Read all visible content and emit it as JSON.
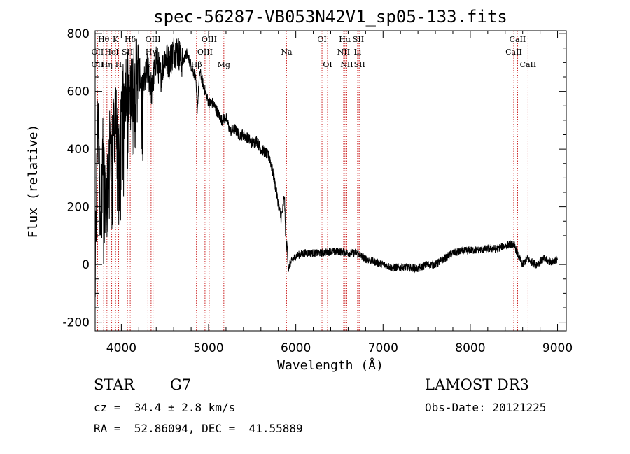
{
  "chart_data": {
    "type": "line",
    "title": "spec-56287-VB053N42V1_sp05-133.fits",
    "xlabel": "Wavelength (Å)",
    "ylabel": "Flux (relative)",
    "xlim": [
      3700,
      9100
    ],
    "ylim": [
      -230,
      810
    ],
    "xticks": [
      4000,
      5000,
      6000,
      7000,
      8000,
      9000
    ],
    "yticks": [
      -200,
      0,
      200,
      400,
      600,
      800
    ],
    "colors": {
      "spectrum": "#000000",
      "line_marker": "#cc2222",
      "axis": "#000000"
    },
    "spectral_lines": [
      {
        "label": "Hθ",
        "wavelength": 3798,
        "row": 1
      },
      {
        "label": "K",
        "wavelength": 3934,
        "row": 1
      },
      {
        "label": "Hδ",
        "wavelength": 4102,
        "row": 1
      },
      {
        "label": "OII",
        "wavelength": 3727,
        "row": 2
      },
      {
        "label": "HeI",
        "wavelength": 3889,
        "row": 2
      },
      {
        "label": "SII",
        "wavelength": 4070,
        "row": 2
      },
      {
        "label": "OII",
        "wavelength": 3727,
        "row": 3
      },
      {
        "label": "Hη",
        "wavelength": 3835,
        "row": 3
      },
      {
        "label": "H",
        "wavelength": 3969,
        "row": 3
      },
      {
        "label": "OIII",
        "wavelength": 4363,
        "row": 1
      },
      {
        "label": "Hγ",
        "wavelength": 4341,
        "row": 2
      },
      {
        "label": "G",
        "wavelength": 4305,
        "row": 3
      },
      {
        "label": "Hβ",
        "wavelength": 4861,
        "row": 3
      },
      {
        "label": "OIII",
        "wavelength": 4959,
        "row": 2
      },
      {
        "label": "OIII",
        "wavelength": 5007,
        "row": 1
      },
      {
        "label": "Mg",
        "wavelength": 5175,
        "row": 3
      },
      {
        "label": "Na",
        "wavelength": 5894,
        "row": 2
      },
      {
        "label": "OI",
        "wavelength": 6300,
        "row": 1
      },
      {
        "label": "OI",
        "wavelength": 6364,
        "row": 3
      },
      {
        "label": "NII",
        "wavelength": 6548,
        "row": 2
      },
      {
        "label": "NII",
        "wavelength": 6584,
        "row": 3
      },
      {
        "label": "Hα",
        "wavelength": 6563,
        "row": 1
      },
      {
        "label": "SII",
        "wavelength": 6717,
        "row": 1
      },
      {
        "label": "SII",
        "wavelength": 6731,
        "row": 3
      },
      {
        "label": "Li",
        "wavelength": 6708,
        "row": 2
      },
      {
        "label": "CaII",
        "wavelength": 8498,
        "row": 2
      },
      {
        "label": "CaII",
        "wavelength": 8542,
        "row": 1
      },
      {
        "label": "CaII",
        "wavelength": 8662,
        "row": 3
      }
    ],
    "spectrum_anchors": {
      "x": [
        3700,
        3710,
        3730,
        3760,
        3790,
        3820,
        3860,
        3900,
        3940,
        3980,
        4020,
        4060,
        4100,
        4150,
        4200,
        4250,
        4300,
        4350,
        4400,
        4450,
        4500,
        4550,
        4600,
        4650,
        4700,
        4750,
        4800,
        4850,
        4870,
        4900,
        4950,
        5000,
        5050,
        5100,
        5150,
        5200,
        5250,
        5300,
        5350,
        5400,
        5450,
        5500,
        5550,
        5600,
        5650,
        5700,
        5750,
        5800,
        5830,
        5850,
        5870,
        5880,
        5890,
        5900,
        5915,
        5930,
        5950,
        6000,
        6100,
        6200,
        6300,
        6400,
        6500,
        6600,
        6700,
        6800,
        6900,
        7000,
        7100,
        7200,
        7300,
        7400,
        7500,
        7600,
        7700,
        7800,
        7900,
        8000,
        8100,
        8200,
        8300,
        8400,
        8450,
        8500,
        8550,
        8600,
        8650,
        8700,
        8750,
        8800,
        8850,
        8900,
        8950,
        9000
      ],
      "y": [
        30,
        120,
        560,
        230,
        390,
        200,
        410,
        420,
        530,
        380,
        570,
        640,
        600,
        680,
        670,
        610,
        680,
        600,
        720,
        650,
        720,
        700,
        740,
        740,
        700,
        730,
        690,
        650,
        540,
        670,
        610,
        560,
        560,
        530,
        500,
        510,
        460,
        470,
        450,
        450,
        440,
        420,
        430,
        400,
        390,
        370,
        300,
        210,
        160,
        190,
        240,
        130,
        60,
        70,
        -20,
        0,
        10,
        30,
        40,
        40,
        40,
        45,
        45,
        40,
        40,
        20,
        10,
        0,
        -10,
        -10,
        -10,
        -15,
        0,
        0,
        20,
        40,
        45,
        50,
        50,
        55,
        55,
        65,
        70,
        70,
        30,
        0,
        20,
        10,
        0,
        10,
        20,
        10,
        10,
        20
      ]
    }
  },
  "footer": {
    "object_type": "STAR",
    "subclass": "G7",
    "redshift": "cz =  34.4 ± 2.8 km/s",
    "coords": "RA =  52.86094, DEC =  41.55889",
    "survey": "LAMOST DR3",
    "obs_date": "Obs-Date: 20121225"
  }
}
